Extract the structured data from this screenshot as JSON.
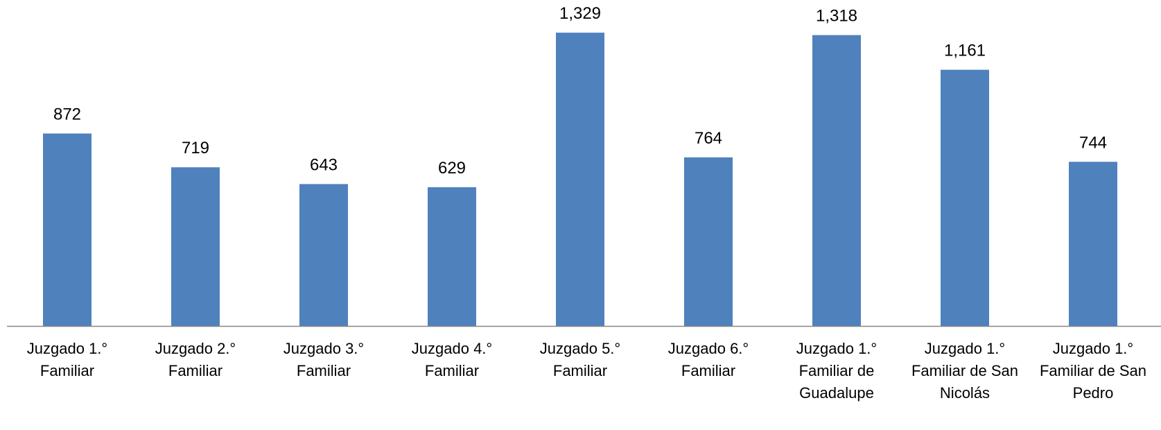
{
  "chart_data": {
    "type": "bar",
    "title": "",
    "xlabel": "",
    "ylabel": "",
    "categories": [
      [
        "Juzgado 1.°",
        "Familiar"
      ],
      [
        "Juzgado 2.°",
        "Familiar"
      ],
      [
        "Juzgado 3.°",
        "Familiar"
      ],
      [
        "Juzgado 4.°",
        "Familiar"
      ],
      [
        "Juzgado 5.°",
        "Familiar"
      ],
      [
        "Juzgado 6.°",
        "Familiar"
      ],
      [
        "Juzgado 1.°",
        "Familiar de",
        "Guadalupe"
      ],
      [
        "Juzgado 1.°",
        "Familiar de San",
        "Nicolás"
      ],
      [
        "Juzgado 1.°",
        "Familiar de San",
        "Pedro"
      ]
    ],
    "values": [
      872,
      719,
      643,
      629,
      1329,
      764,
      1318,
      1161,
      744
    ],
    "value_labels": [
      "872",
      "719",
      "643",
      "629",
      "1,329",
      "764",
      "1,318",
      "1,161",
      "744"
    ],
    "ylim": [
      0,
      1400
    ],
    "grid": false,
    "legend": "none",
    "bar_color": "#4F81BD",
    "axis_color": "#868686"
  }
}
